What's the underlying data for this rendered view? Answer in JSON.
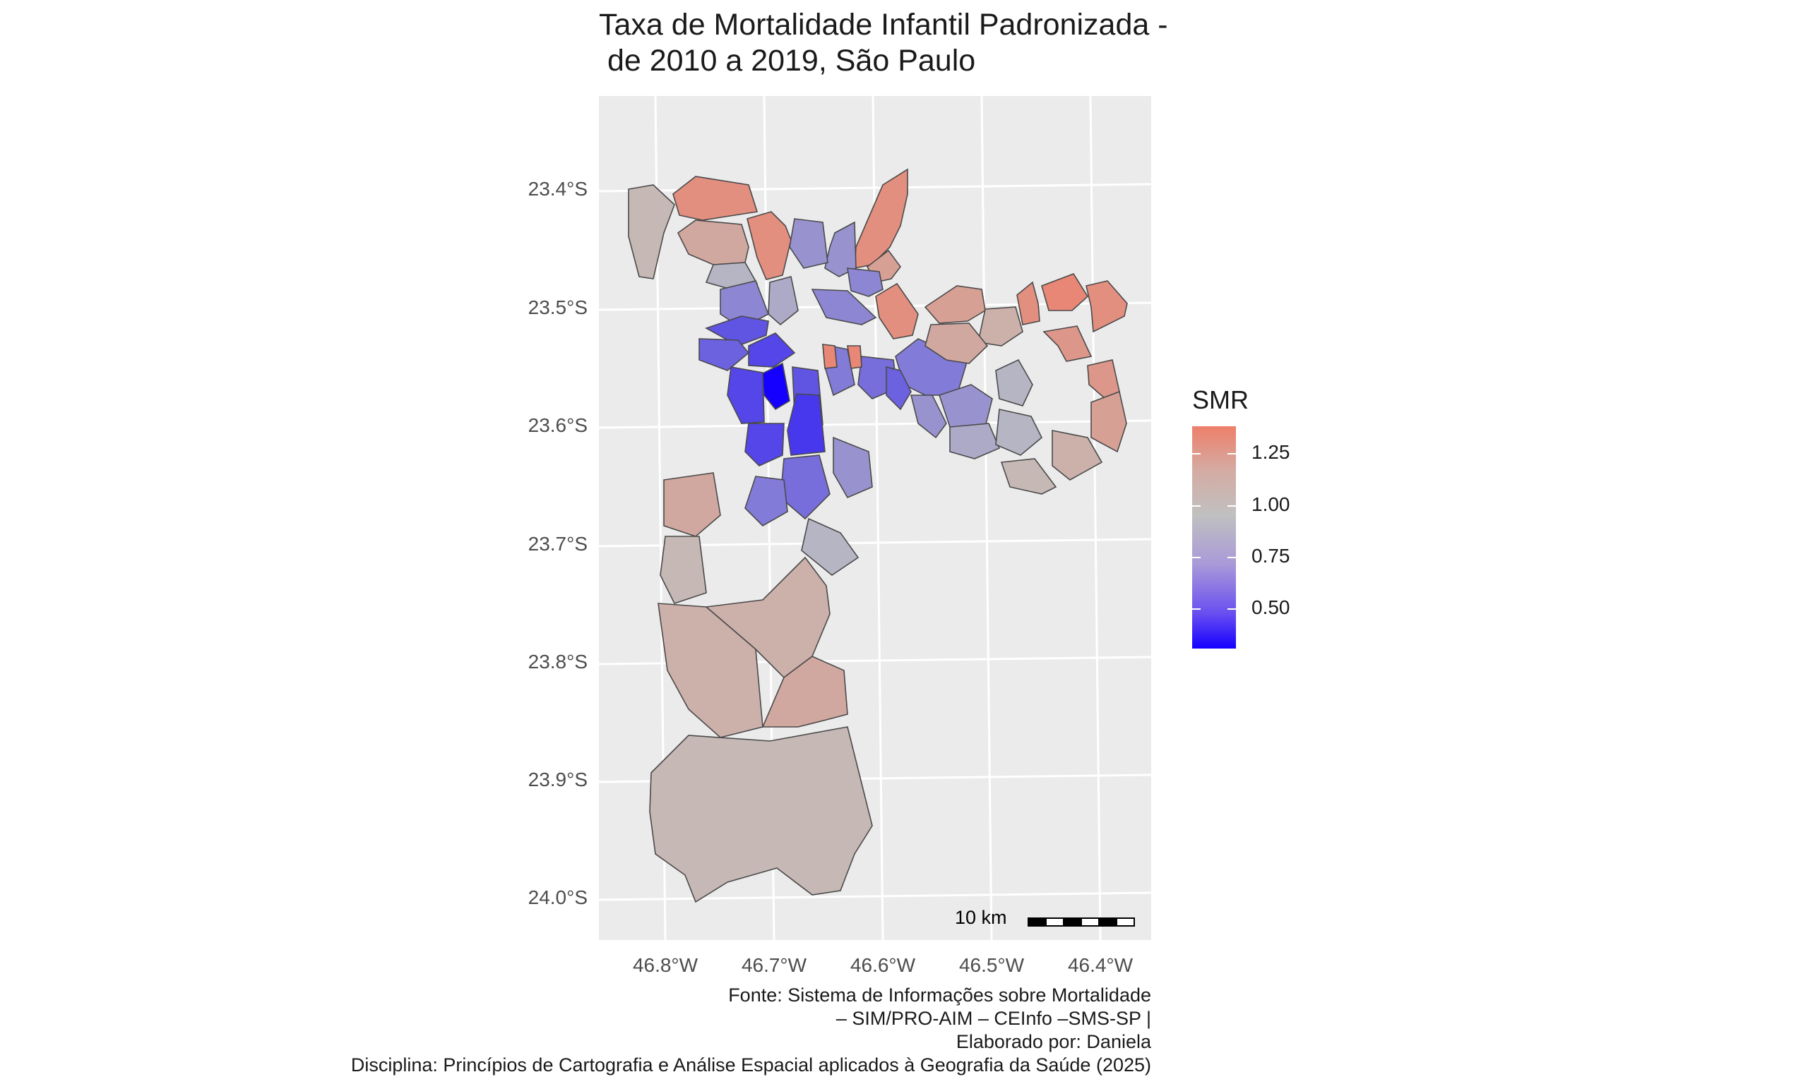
{
  "title_line1": "Taxa de Mortalidade Infantil Padronizada -",
  "title_line2": " de 2010 a 2019, São Paulo",
  "axes": {
    "y_ticks": [
      "23.4°S",
      "23.5°S",
      "23.6°S",
      "23.7°S",
      "23.8°S",
      "23.9°S",
      "24.0°S"
    ],
    "x_ticks": [
      "46.8°W",
      "46.7°W",
      "46.6°W",
      "46.5°W",
      "46.4°W"
    ]
  },
  "legend": {
    "title": "SMR",
    "labels": [
      "1.25",
      "1.00",
      "0.75",
      "0.50"
    ],
    "colors": {
      "high": "#ee7f6a",
      "mid": "#c0c0c0",
      "low": "#1500ff"
    }
  },
  "scale_bar": {
    "label": "10 km"
  },
  "caption": {
    "line1": "Fonte: Sistema de Informações sobre Mortalidade",
    "line2": "– SIM/PRO-AIM – CEInfo –SMS-SP |",
    "line3": "Elaborado por: Daniela",
    "line4": "Disciplina: Princípios de Cartografia e Análise Espacial aplicados à Geografia da Saúde (2025)"
  },
  "chart_data": {
    "type": "choropleth",
    "fill_variable": "SMR",
    "legend_range": [
      0.3,
      1.4
    ],
    "legend_breaks": [
      0.5,
      0.75,
      1.0,
      1.25
    ],
    "lat_ticks": [
      -23.4,
      -23.5,
      -23.6,
      -23.7,
      -23.8,
      -23.9,
      -24.0
    ],
    "lon_ticks": [
      -46.8,
      -46.7,
      -46.6,
      -46.5,
      -46.4
    ],
    "palette": {
      "low": "#1500ff",
      "mid": "#c0c0c0",
      "high": "#ee7f6a"
    },
    "regions": [
      {
        "smr": 1.05
      },
      {
        "smr": 1.3
      },
      {
        "smr": 1.3
      },
      {
        "smr": 1.15
      },
      {
        "smr": 0.95
      },
      {
        "smr": 1.3
      },
      {
        "smr": 0.8
      },
      {
        "smr": 1.2
      },
      {
        "smr": 0.8
      },
      {
        "smr": 0.75
      },
      {
        "smr": 0.75
      },
      {
        "smr": 0.9
      },
      {
        "smr": 1.3
      },
      {
        "smr": 0.75
      },
      {
        "smr": 0.55
      },
      {
        "smr": 0.6
      },
      {
        "smr": 0.5
      },
      {
        "smr": 0.3
      },
      {
        "smr": 0.55
      },
      {
        "smr": 0.45
      },
      {
        "smr": 0.5
      },
      {
        "smr": 0.5
      },
      {
        "smr": 0.7
      },
      {
        "smr": 0.65
      },
      {
        "smr": 1.35
      },
      {
        "smr": 1.35
      },
      {
        "smr": 0.7
      },
      {
        "smr": 0.6
      },
      {
        "smr": 0.8
      },
      {
        "smr": 0.8
      },
      {
        "smr": 1.2
      },
      {
        "smr": 1.1
      },
      {
        "smr": 1.15
      },
      {
        "smr": 1.3
      },
      {
        "smr": 1.35
      },
      {
        "smr": 1.25
      },
      {
        "smr": 1.3
      },
      {
        "smr": 1.25
      },
      {
        "smr": 1.2
      },
      {
        "smr": 0.95
      },
      {
        "smr": 0.9
      },
      {
        "smr": 0.95
      },
      {
        "smr": 1.05
      },
      {
        "smr": 1.1
      },
      {
        "smr": 0.65
      },
      {
        "smr": 0.7
      },
      {
        "smr": 0.8
      },
      {
        "smr": 0.95
      },
      {
        "smr": 1.15
      },
      {
        "smr": 1.05
      },
      {
        "smr": 1.1
      },
      {
        "smr": 1.1
      },
      {
        "smr": 1.15
      },
      {
        "smr": 1.05
      }
    ]
  }
}
